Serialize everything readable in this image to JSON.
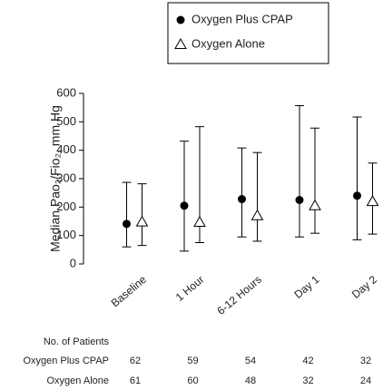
{
  "chart_data": {
    "type": "errorbar",
    "y_label": "Median Pao₂/Fio₂, mm Hg",
    "categories": [
      "Baseline",
      "1 Hour",
      "6-12 Hours",
      "Day 1",
      "Day 2"
    ],
    "ylim": [
      0,
      600
    ],
    "yticks": [
      0,
      100,
      200,
      300,
      400,
      500,
      600
    ],
    "grid": false,
    "series": [
      {
        "name": "Oxygen Plus CPAP",
        "color": "#000000",
        "marker": "circle",
        "values": [
          141,
          205,
          228,
          225,
          240
        ],
        "low": [
          60,
          45,
          95,
          95,
          85
        ],
        "high": [
          287,
          432,
          408,
          557,
          517
        ]
      },
      {
        "name": "Oxygen Alone",
        "color": "#000000",
        "marker": "triangle",
        "values": [
          148,
          147,
          170,
          205,
          220
        ],
        "low": [
          65,
          75,
          80,
          108,
          105
        ],
        "high": [
          282,
          483,
          392,
          478,
          355
        ]
      }
    ],
    "table": {
      "title": "No. of Patients",
      "rows": [
        {
          "name": "Oxygen Plus CPAP",
          "values": [
            62,
            59,
            54,
            42,
            32
          ]
        },
        {
          "name": "Oxygen Alone",
          "values": [
            61,
            60,
            48,
            32,
            24
          ]
        }
      ]
    }
  }
}
